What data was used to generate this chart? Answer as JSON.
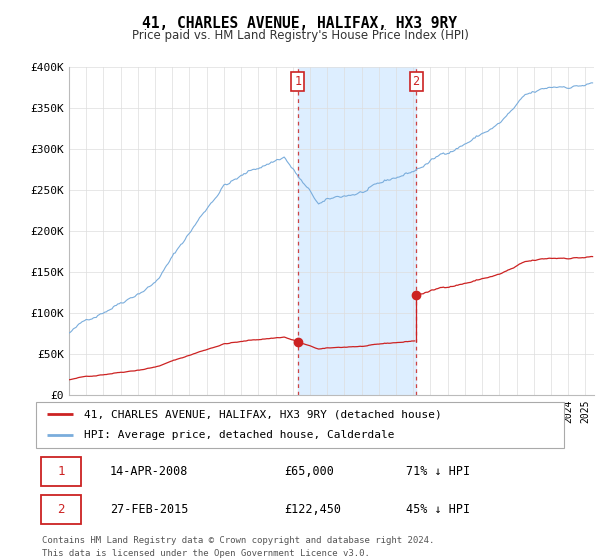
{
  "title": "41, CHARLES AVENUE, HALIFAX, HX3 9RY",
  "subtitle": "Price paid vs. HM Land Registry's House Price Index (HPI)",
  "legend_line1": "41, CHARLES AVENUE, HALIFAX, HX3 9RY (detached house)",
  "legend_line2": "HPI: Average price, detached house, Calderdale",
  "sale1_label": "1",
  "sale1_date": "14-APR-2008",
  "sale1_price": "£65,000",
  "sale1_pct": "71% ↓ HPI",
  "sale2_label": "2",
  "sale2_date": "27-FEB-2015",
  "sale2_price": "£122,450",
  "sale2_pct": "45% ↓ HPI",
  "footer1": "Contains HM Land Registry data © Crown copyright and database right 2024.",
  "footer2": "This data is licensed under the Open Government Licence v3.0.",
  "hpi_color": "#7aaddc",
  "property_color": "#cc2222",
  "marker_color": "#cc2222",
  "shade_color": "#ddeeff",
  "ylim": [
    0,
    400000
  ],
  "yticks": [
    0,
    50000,
    100000,
    150000,
    200000,
    250000,
    300000,
    350000,
    400000
  ],
  "ytick_labels": [
    "£0",
    "£50K",
    "£100K",
    "£150K",
    "£200K",
    "£250K",
    "£300K",
    "£350K",
    "£400K"
  ],
  "sale1_year": 2008.29,
  "sale1_value": 65000,
  "sale2_year": 2015.16,
  "sale2_value": 122450,
  "xmin": 1995.0,
  "xmax": 2025.5
}
